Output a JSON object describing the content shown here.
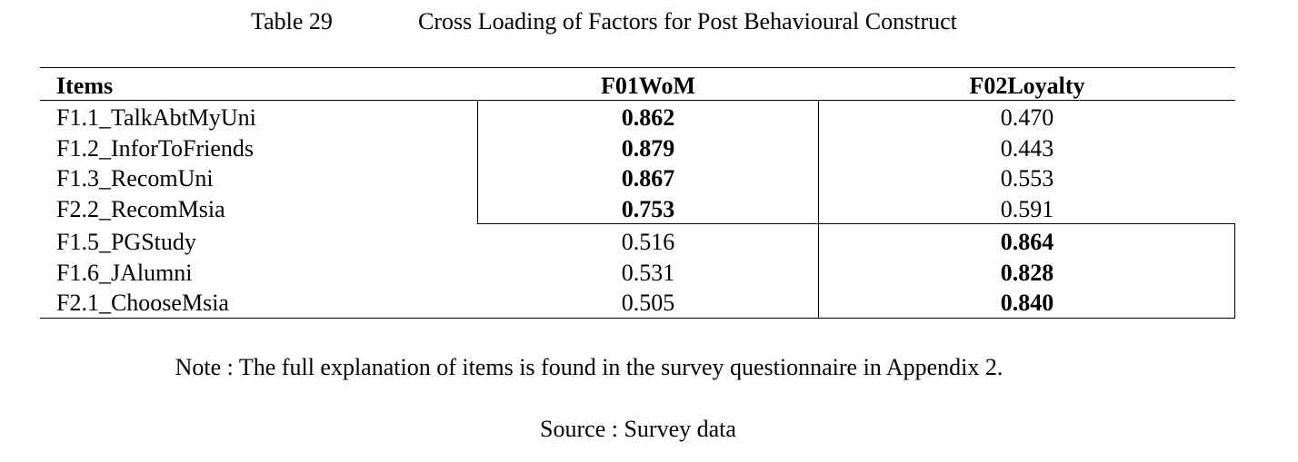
{
  "table": {
    "number": "Table 29",
    "title": "Cross Loading of Factors for Post Behavioural Construct",
    "header": [
      "Items",
      "F01WoM",
      "F02Loyalty"
    ],
    "rows": [
      [
        "F1.1_TalkAbtMyUni",
        "0.862",
        "0.470"
      ],
      [
        "F1.2_InforToFriends",
        "0.879",
        "0.443"
      ],
      [
        "F1.3_RecomUni",
        "0.867",
        "0.553"
      ],
      [
        "F2.2_RecomMsia",
        "0.753",
        "0.591"
      ],
      [
        "F1.5_PGStudy",
        "0.516",
        "0.864"
      ],
      [
        "F1.6_JAlumni",
        "0.531",
        "0.828"
      ],
      [
        "F2.1_ChooseMsia",
        "0.505",
        "0.840"
      ]
    ]
  },
  "note": "Note : The full explanation of items is found in the survey questionnaire in Appendix 2.",
  "source": "Source : Survey data"
}
